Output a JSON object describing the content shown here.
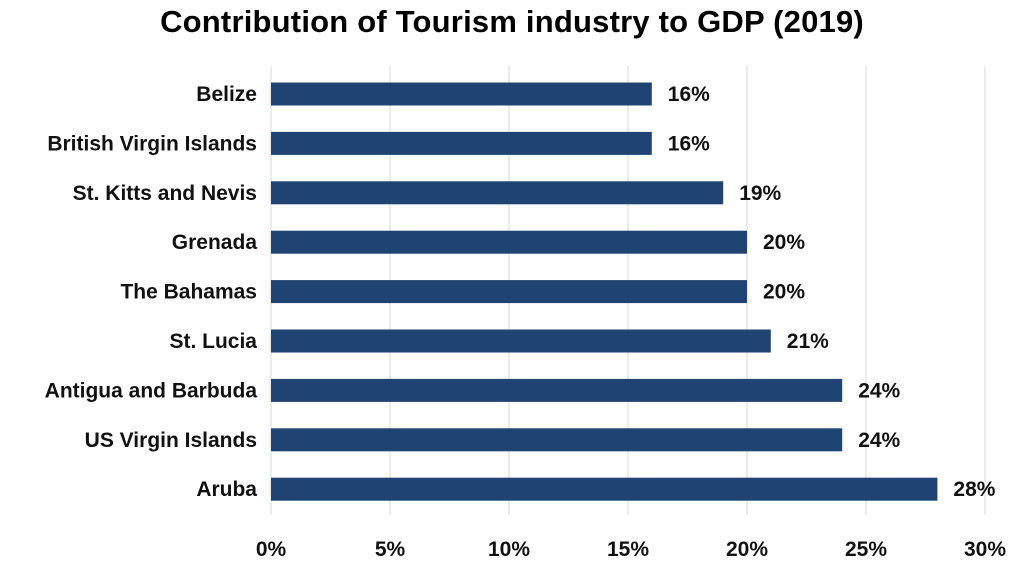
{
  "chart_data": {
    "type": "bar",
    "orientation": "horizontal",
    "title": "Contribution of Tourism industry to GDP (2019)",
    "xlabel": "",
    "ylabel": "",
    "xlim": [
      0,
      30
    ],
    "x_ticks": [
      0,
      5,
      10,
      15,
      20,
      25,
      30
    ],
    "x_tick_labels": [
      "0%",
      "5%",
      "10%",
      "15%",
      "20%",
      "25%",
      "30%"
    ],
    "grid": "vertical",
    "legend": "none",
    "bar_color": "#1f4372",
    "categories": [
      "Belize",
      "British Virgin Islands",
      "St. Kitts and Nevis",
      "Grenada",
      "The Bahamas",
      "St. Lucia",
      "Antigua and Barbuda",
      "US Virgin Islands",
      "Aruba"
    ],
    "values": [
      16,
      16,
      19,
      20,
      20,
      21,
      24,
      24,
      28
    ],
    "value_labels": [
      "16%",
      "16%",
      "19%",
      "20%",
      "20%",
      "21%",
      "24%",
      "24%",
      "28%"
    ]
  }
}
